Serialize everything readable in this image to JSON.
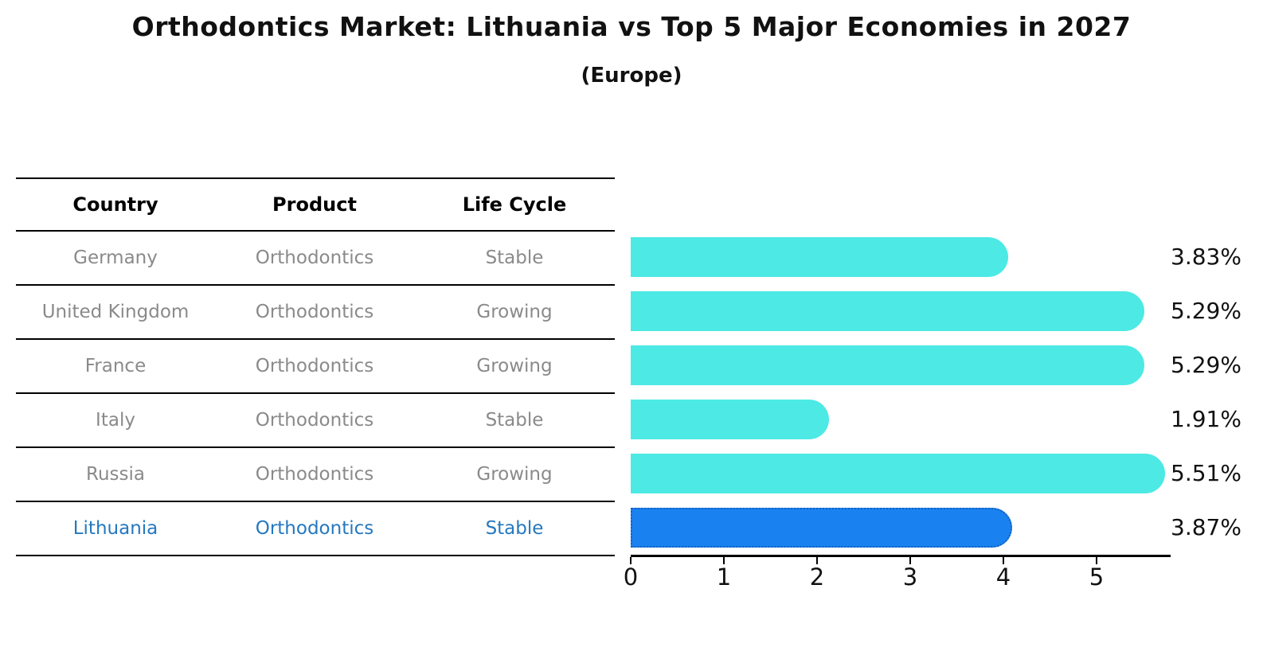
{
  "title": "Orthodontics Market: Lithuania vs Top 5 Major Economies in 2027",
  "subtitle": "(Europe)",
  "table": {
    "headers": [
      "Country",
      "Product",
      "Life Cycle"
    ],
    "rows": [
      {
        "country": "Germany",
        "product": "Orthodontics",
        "life_cycle": "Stable",
        "highlighted": false
      },
      {
        "country": "United Kingdom",
        "product": "Orthodontics",
        "life_cycle": "Growing",
        "highlighted": false
      },
      {
        "country": "France",
        "product": "Orthodontics",
        "life_cycle": "Growing",
        "highlighted": false
      },
      {
        "country": "Italy",
        "product": "Orthodontics",
        "life_cycle": "Stable",
        "highlighted": false
      },
      {
        "country": "Russia",
        "product": "Orthodontics",
        "life_cycle": "Growing",
        "highlighted": false
      },
      {
        "country": "Lithuania",
        "product": "Orthodontics",
        "life_cycle": "Stable",
        "highlighted": true
      }
    ]
  },
  "chart_data": {
    "type": "bar",
    "orientation": "horizontal",
    "title": "Orthodontics Market: Lithuania vs Top 5 Major Economies in 2027",
    "subtitle": "(Europe)",
    "categories": [
      "Germany",
      "United Kingdom",
      "France",
      "Italy",
      "Russia",
      "Lithuania"
    ],
    "values": [
      3.83,
      5.29,
      5.29,
      1.91,
      5.51,
      3.87
    ],
    "value_labels": [
      "3.83%",
      "5.29%",
      "5.29%",
      "1.91%",
      "5.51%",
      "3.87%"
    ],
    "highlight_index": 5,
    "xticks": [
      "0",
      "1",
      "2",
      "3",
      "4",
      "5"
    ],
    "xlim": [
      0,
      5.78
    ],
    "grid": false,
    "legend": false,
    "colors": {
      "bar": "#4DE9E4",
      "highlight_bar": "#1A82F0",
      "highlight_border": "#1360C0",
      "row_text": "#8a8a8a",
      "highlight_text": "#2578bf",
      "axis": "#000000",
      "label_text": "#111111"
    }
  }
}
